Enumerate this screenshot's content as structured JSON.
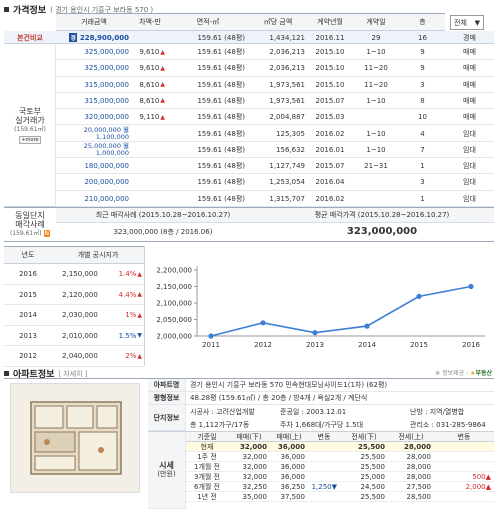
{
  "price_section": {
    "title": "가격정보",
    "location": "( 경기 용인시 기흥구 보라동 570 )",
    "headers": [
      "거래금액",
      "차액-만",
      "면적-㎡",
      "㎡당 금액",
      "계약년월",
      "계약일",
      "층"
    ],
    "dropdown": "전체",
    "compare_label": "본건비교",
    "compare_badge": "경",
    "compare_row": [
      "228,900,000",
      "",
      "159.61 (48평)",
      "1,434,121",
      "2016.11",
      "29",
      "16",
      "경매"
    ],
    "molit_label": [
      "국토부",
      "실거래가",
      "(159.61㎡)"
    ],
    "more_label": "+more",
    "rows": [
      [
        "325,000,000",
        "9,610",
        "159.61 (48평)",
        "2,036,213",
        "2015.10",
        "1~10",
        "9",
        "매매"
      ],
      [
        "325,000,000",
        "9,610",
        "159.61 (48평)",
        "2,036,213",
        "2015.10",
        "11~20",
        "9",
        "매매"
      ],
      [
        "315,000,000",
        "8,610",
        "159.61 (48평)",
        "1,973,561",
        "2015.10",
        "11~20",
        "3",
        "매매"
      ],
      [
        "315,000,000",
        "8,610",
        "159.61 (48평)",
        "1,973,561",
        "2015.07",
        "1~10",
        "8",
        "매매"
      ],
      [
        "320,000,000",
        "9,110",
        "159.61 (48평)",
        "2,004,887",
        "2015.03",
        "",
        "10",
        "매매"
      ],
      [
        "20,000,000 월 1,100,000",
        "",
        "159.61 (48평)",
        "125,305",
        "2016.02",
        "1~10",
        "4",
        "임대"
      ],
      [
        "25,000,000 월 1,000,000",
        "",
        "159.61 (48평)",
        "156,632",
        "2016.01",
        "1~10",
        "7",
        "임대"
      ],
      [
        "180,000,000",
        "",
        "159.61 (48평)",
        "1,127,749",
        "2015.07",
        "21~31",
        "1",
        "임대"
      ],
      [
        "200,000,000",
        "",
        "159.61 (48평)",
        "1,253,054",
        "2016.04",
        "",
        "3",
        "임대"
      ],
      [
        "210,000,000",
        "",
        "159.61 (48평)",
        "1,315,707",
        "2016.02",
        "",
        "1",
        "임대"
      ]
    ],
    "row_arrows": [
      true,
      true,
      true,
      true,
      true,
      false,
      false,
      false,
      false,
      false
    ]
  },
  "complex": {
    "label": [
      "동일단지",
      "매각사례",
      "(159.61㎡)"
    ],
    "badge": "N",
    "recent_header": "최근 매각사례 (2015.10.28~2016.10.27)",
    "avg_header": "평균 매각가격 (2015.10.28~2016.10.27)",
    "recent_value": "323,000,000 (8층 / 2016.06)",
    "avg_value": "323,000,000"
  },
  "official": {
    "headers": [
      "년도",
      "개별 공시지가"
    ],
    "rows": [
      {
        "year": "2016",
        "price": "2,150,000",
        "pct": "1.4%",
        "arrow": "up"
      },
      {
        "year": "2015",
        "price": "2,120,000",
        "pct": "4.4%",
        "arrow": "up"
      },
      {
        "year": "2014",
        "price": "2,030,000",
        "pct": "1%",
        "arrow": "up"
      },
      {
        "year": "2013",
        "price": "2,010,000",
        "pct": "1.5%",
        "arrow": "down"
      },
      {
        "year": "2012",
        "price": "2,040,000",
        "pct": "2%",
        "arrow": "up"
      }
    ]
  },
  "chart_data": {
    "type": "line",
    "categories": [
      "2011",
      "2012",
      "2013",
      "2014",
      "2015",
      "2016"
    ],
    "values": [
      2000000,
      2040000,
      2010000,
      2030000,
      2120000,
      2150000
    ],
    "yticks": [
      "2,200,000",
      "2,150,000",
      "2,100,000",
      "2,050,000",
      "2,000,000"
    ],
    "ylim": [
      2000000,
      2200000
    ],
    "colors": {
      "line": "#3d7fd6"
    }
  },
  "apt": {
    "title": "아파트정보",
    "detail": "[ 자세히 ]",
    "source": "※ 정보제공 :",
    "source_name": "부동산",
    "name_label": "아파트명",
    "name_value": "경기 용인시 기흥구 보라동 570 민속현대모닝사이드1(1차) (62평)",
    "area_label": "평형정보",
    "area_value": "48.28평 (159.61㎡) / 총 20층 / 방4개 / 욕실2개 / 계단식",
    "info_label": "단지정보",
    "builder": "시공사 : 고려산업개발",
    "completion": "준공일 : 2003.12.01",
    "heating": "난방 : 지역/열병합",
    "households": "총 1,112가구/17동",
    "parking": "주차 1,668대/가구당 1.5대",
    "office": "관리소 : 031-285-9864",
    "market_label": [
      "시세",
      "(만원)"
    ],
    "market_headers": [
      "기준일",
      "매매(下)",
      "매매(上)",
      "변동",
      "전세(下)",
      "전세(上)",
      "변동"
    ],
    "market_rows": [
      [
        "현재",
        "32,000",
        "36,000",
        "",
        "25,500",
        "28,000",
        ""
      ],
      [
        "1주 전",
        "32,000",
        "36,000",
        "",
        "25,500",
        "28,000",
        ""
      ],
      [
        "1개월 전",
        "32,000",
        "36,000",
        "",
        "25,500",
        "28,000",
        ""
      ],
      [
        "3개월 전",
        "32,000",
        "36,000",
        "",
        "25,000",
        "28,000",
        "500▲"
      ],
      [
        "6개월 전",
        "32,250",
        "36,250",
        "1,250▼",
        "24,500",
        "27,500",
        "2,000▲"
      ],
      [
        "1년 전",
        "35,000",
        "37,500",
        "",
        "25,500",
        "28,500",
        ""
      ]
    ]
  }
}
